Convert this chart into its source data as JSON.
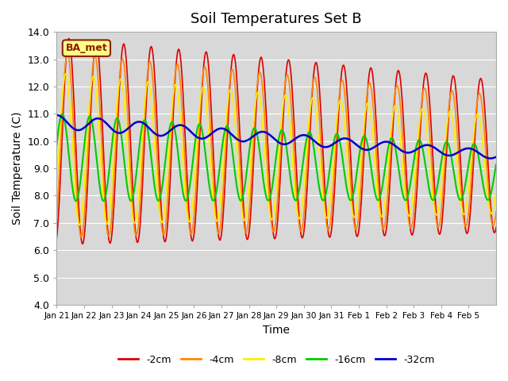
{
  "title": "Soil Temperatures Set B",
  "xlabel": "Time",
  "ylabel": "Soil Temperature (C)",
  "ylim": [
    4.0,
    14.0
  ],
  "yticks": [
    4.0,
    5.0,
    6.0,
    7.0,
    8.0,
    9.0,
    10.0,
    11.0,
    12.0,
    13.0,
    14.0
  ],
  "xtick_labels": [
    "Jan 21",
    "Jan 22",
    "Jan 23",
    "Jan 24",
    "Jan 25",
    "Jan 26",
    "Jan 27",
    "Jan 28",
    "Jan 29",
    "Jan 30",
    "Jan 31",
    "Feb 1",
    "Feb 2",
    "Feb 3",
    "Feb 4",
    "Feb 5"
  ],
  "line_colors": [
    "#dd0000",
    "#ff8800",
    "#ffee00",
    "#00cc00",
    "#0000cc"
  ],
  "line_labels": [
    "-2cm",
    "-4cm",
    "-8cm",
    "-16cm",
    "-32cm"
  ],
  "line_widths": [
    1.2,
    1.2,
    1.2,
    1.5,
    1.8
  ],
  "plot_bg_color": "#d8d8d8",
  "annotation_text": "BA_met",
  "annotation_bg": "#ffff88",
  "annotation_border": "#882200"
}
